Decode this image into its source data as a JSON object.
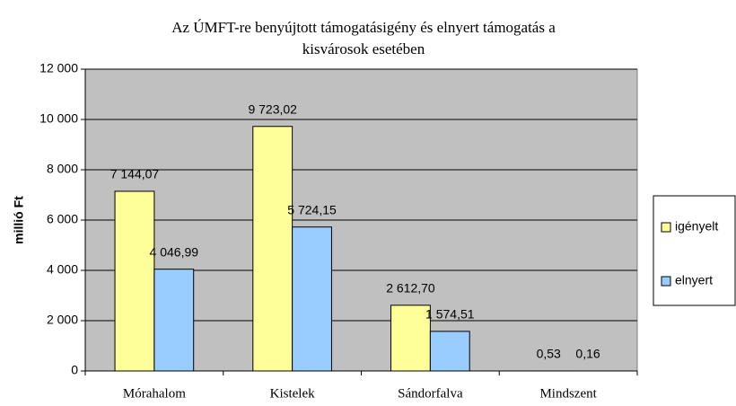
{
  "chart_data": {
    "type": "bar",
    "title": [
      "Az ÚMFT-re benyújtott támogatásigény és elnyert támogatás a",
      "kisvárosok esetében"
    ],
    "y_label": "millió Ft",
    "categories": [
      "Mórahalom",
      "Kistelek",
      "Sándorfalva",
      "Mindszent"
    ],
    "series": [
      {
        "name": "igényelt",
        "color": "#ffff99",
        "values": [
          7144.07,
          9723.02,
          2612.7,
          0.53
        ],
        "value_labels": [
          "7 144,07",
          "9 723,02",
          "2 612,70",
          "0,53"
        ]
      },
      {
        "name": "elnyert",
        "color": "#99ccff",
        "values": [
          4046.99,
          5724.15,
          1574.51,
          0.16
        ],
        "value_labels": [
          "4 046,99",
          "5 724,15",
          "1 574,51",
          "0,16"
        ]
      }
    ],
    "ylim": [
      0,
      12000
    ],
    "yticks": [
      0,
      {
        "value": 2000,
        "label": "2 000"
      },
      {
        "value": 4000,
        "label": "4 000"
      },
      {
        "value": 6000,
        "label": "6 000"
      },
      {
        "value": 8000,
        "label": "8 000"
      },
      {
        "value": 10000,
        "label": "10 000"
      },
      {
        "value": 12000,
        "label": "12 000"
      }
    ],
    "grid": true,
    "legend": "right",
    "plot_background": "#c0c0c0"
  }
}
